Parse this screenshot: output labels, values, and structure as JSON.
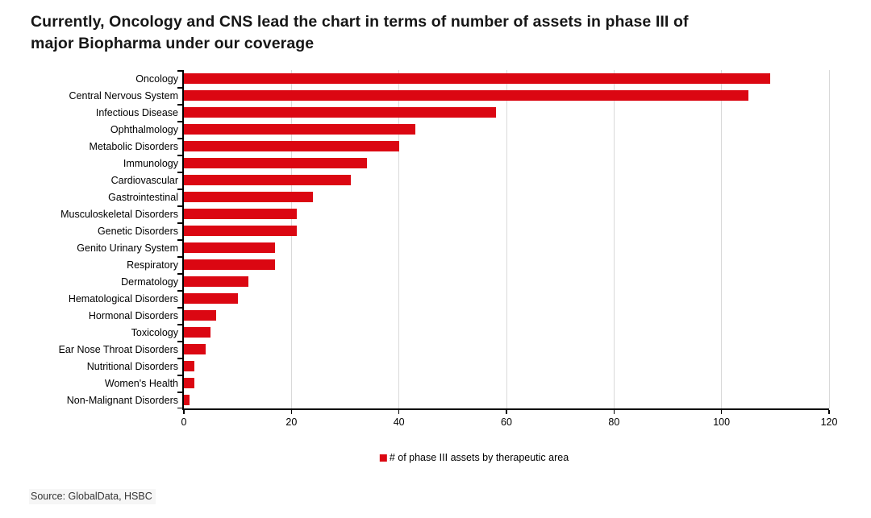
{
  "title": {
    "line1": "Currently, Oncology and CNS lead the chart in terms of number of assets in phase III of",
    "line2": "major Biopharma under our coverage"
  },
  "legend": {
    "label": "# of phase III assets by therapeutic area"
  },
  "source": "Source: GlobalData, HSBC",
  "colors": {
    "bar": "#db0712",
    "gridline": "#d9d9d9",
    "axis": "#000000"
  },
  "chart_data": {
    "type": "bar",
    "orientation": "horizontal",
    "title": "Currently, Oncology and CNS lead the chart in terms of number of assets in phase III of major Biopharma under our coverage",
    "legend_entries": [
      "# of phase III assets by therapeutic area"
    ],
    "legend_position": "bottom-center",
    "grid": "vertical",
    "xlim": [
      0,
      120
    ],
    "xticks": [
      0,
      20,
      40,
      60,
      80,
      100,
      120
    ],
    "xlabel": "",
    "ylabel": "",
    "categories": [
      "Oncology",
      "Central Nervous System",
      "Infectious Disease",
      "Ophthalmology",
      "Metabolic Disorders",
      "Immunology",
      "Cardiovascular",
      "Gastrointestinal",
      "Musculoskeletal Disorders",
      "Genetic Disorders",
      "Genito Urinary System",
      "Respiratory",
      "Dermatology",
      "Hematological Disorders",
      "Hormonal Disorders",
      "Toxicology",
      "Ear Nose Throat Disorders",
      "Nutritional Disorders",
      "Women's Health",
      "Non-Malignant Disorders"
    ],
    "values": [
      109,
      105,
      58,
      43,
      40,
      34,
      31,
      24,
      21,
      21,
      17,
      17,
      12,
      10,
      6,
      5,
      4,
      2,
      2,
      1
    ]
  }
}
